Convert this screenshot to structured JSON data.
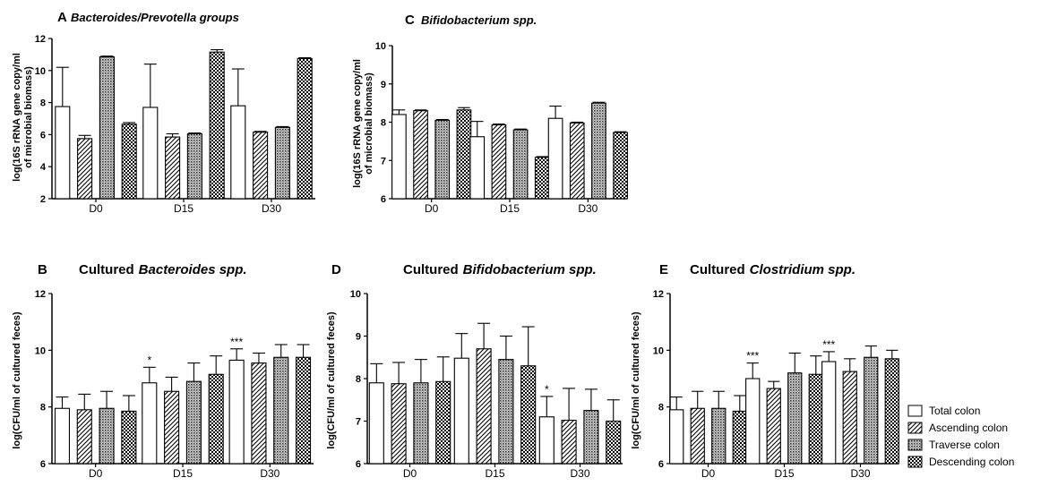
{
  "chart_data": [
    {
      "id": "A",
      "type": "bar",
      "panel_letter": "A",
      "title_prefix": "",
      "title_italic": "Bacteroides/Prevotella groups",
      "ylabel": [
        "log(16S rRNA gene copy/ml",
        "of microbial biomass)"
      ],
      "categories": [
        "D0",
        "D15",
        "D30"
      ],
      "ylim": [
        2,
        12
      ],
      "yticks": [
        2,
        4,
        6,
        8,
        10,
        12
      ],
      "series": [
        {
          "name": "Total colon",
          "values": [
            7.75,
            7.7,
            7.8
          ],
          "errors": [
            2.45,
            2.7,
            2.3
          ]
        },
        {
          "name": "Ascending colon",
          "values": [
            5.75,
            5.85,
            6.15
          ],
          "errors": [
            0.2,
            0.2,
            0.05
          ]
        },
        {
          "name": "Traverse colon",
          "values": [
            10.85,
            6.05,
            6.45
          ],
          "errors": [
            0.05,
            0.05,
            0.05
          ]
        },
        {
          "name": "Descending colon",
          "values": [
            6.65,
            11.15,
            10.75
          ],
          "errors": [
            0.1,
            0.15,
            0.05
          ]
        }
      ],
      "annotations": [
        [],
        [],
        []
      ]
    },
    {
      "id": "C",
      "type": "bar",
      "panel_letter": "C",
      "title_prefix": "",
      "title_italic": "Bifidobacterium spp.",
      "ylabel": [
        "log(16S rRNA gene copy/ml",
        "of microbial biomass)"
      ],
      "categories": [
        "D0",
        "D15",
        "D30"
      ],
      "ylim": [
        6,
        10
      ],
      "yticks": [
        6,
        7,
        8,
        9,
        10
      ],
      "series": [
        {
          "name": "Total colon",
          "values": [
            8.2,
            7.62,
            8.1
          ],
          "errors": [
            0.12,
            0.4,
            0.32
          ]
        },
        {
          "name": "Ascending colon",
          "values": [
            8.3,
            7.93,
            7.98
          ],
          "errors": [
            0.02,
            0.02,
            0.02
          ]
        },
        {
          "name": "Traverse colon",
          "values": [
            8.05,
            7.8,
            8.5
          ],
          "errors": [
            0.02,
            0.02,
            0.02
          ]
        },
        {
          "name": "Descending colon",
          "values": [
            8.32,
            7.08,
            7.73
          ],
          "errors": [
            0.06,
            0.02,
            0.02
          ]
        }
      ],
      "annotations": [
        [],
        [],
        []
      ]
    },
    {
      "id": "B",
      "type": "bar",
      "panel_letter": "B",
      "title_prefix": "Cultured",
      "title_italic": "Bacteroides spp.",
      "ylabel": [
        "log(CFU/ml of cultured feces)"
      ],
      "categories": [
        "D0",
        "D15",
        "D30"
      ],
      "ylim": [
        6,
        12
      ],
      "yticks": [
        6,
        8,
        10,
        12
      ],
      "series": [
        {
          "name": "Total colon",
          "values": [
            7.95,
            8.85,
            9.65
          ],
          "errors": [
            0.4,
            0.55,
            0.4
          ]
        },
        {
          "name": "Ascending colon",
          "values": [
            7.9,
            8.55,
            9.55
          ],
          "errors": [
            0.55,
            0.5,
            0.35
          ]
        },
        {
          "name": "Traverse colon",
          "values": [
            7.95,
            8.9,
            9.75
          ],
          "errors": [
            0.6,
            0.65,
            0.45
          ]
        },
        {
          "name": "Descending colon",
          "values": [
            7.85,
            9.15,
            9.75
          ],
          "errors": [
            0.55,
            0.65,
            0.45
          ]
        }
      ],
      "annotations": [
        "",
        "*",
        "***"
      ]
    },
    {
      "id": "D",
      "type": "bar",
      "panel_letter": "D",
      "title_prefix": "Cultured",
      "title_italic": "Bifidobacterium spp.",
      "ylabel": [
        "log(CFU/ml of cultured feces)"
      ],
      "categories": [
        "D0",
        "D15",
        "D30"
      ],
      "ylim": [
        6,
        10
      ],
      "yticks": [
        6,
        7,
        8,
        9,
        10
      ],
      "series": [
        {
          "name": "Total colon",
          "values": [
            7.9,
            8.48,
            7.1
          ],
          "errors": [
            0.45,
            0.58,
            0.48
          ]
        },
        {
          "name": "Ascending colon",
          "values": [
            7.88,
            8.7,
            7.02
          ],
          "errors": [
            0.5,
            0.6,
            0.75
          ]
        },
        {
          "name": "Traverse colon",
          "values": [
            7.9,
            8.45,
            7.25
          ],
          "errors": [
            0.55,
            0.55,
            0.5
          ]
        },
        {
          "name": "Descending colon",
          "values": [
            7.93,
            8.3,
            7.0
          ],
          "errors": [
            0.58,
            0.92,
            0.5
          ]
        }
      ],
      "annotations": [
        "",
        "",
        "*"
      ]
    },
    {
      "id": "E",
      "type": "bar",
      "panel_letter": "E",
      "title_prefix": "Cultured",
      "title_italic": "Clostridium spp.",
      "ylabel": [
        "log(CFU/ml of cultured feces)"
      ],
      "categories": [
        "D0",
        "D15",
        "D30"
      ],
      "ylim": [
        6,
        12
      ],
      "yticks": [
        6,
        8,
        10,
        12
      ],
      "series": [
        {
          "name": "Total colon",
          "values": [
            7.9,
            9.0,
            9.6
          ],
          "errors": [
            0.45,
            0.55,
            0.35
          ]
        },
        {
          "name": "Ascending colon",
          "values": [
            7.95,
            8.65,
            9.25
          ],
          "errors": [
            0.6,
            0.25,
            0.45
          ]
        },
        {
          "name": "Traverse colon",
          "values": [
            7.95,
            9.2,
            9.75
          ],
          "errors": [
            0.6,
            0.7,
            0.4
          ]
        },
        {
          "name": "Descending colon",
          "values": [
            7.85,
            9.15,
            9.7
          ],
          "errors": [
            0.55,
            0.65,
            0.3
          ]
        }
      ],
      "annotations": [
        "",
        "***",
        "***"
      ]
    }
  ],
  "legend": {
    "entries": [
      "Total colon",
      "Ascending colon",
      "Traverse colon",
      "Descending colon"
    ]
  }
}
